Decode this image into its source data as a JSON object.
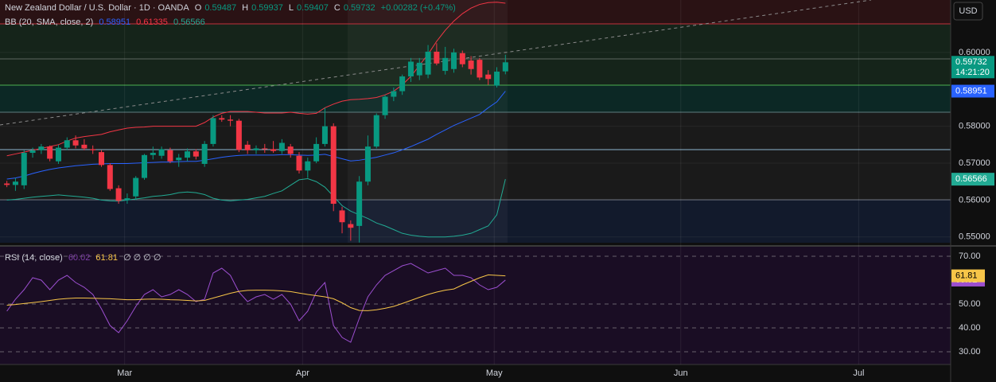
{
  "chart_data": [
    {
      "type": "candlestick",
      "title": "New Zealand Dollar / U.S. Dollar · 1D · OANDA",
      "ohlc_legend": [
        {
          "key": "O",
          "value": "0.59487"
        },
        {
          "key": "H",
          "value": "0.59937"
        },
        {
          "key": "L",
          "value": "0.59407"
        },
        {
          "key": "C",
          "value": "0.59732"
        }
      ],
      "change": "+0.00282 (+0.47%)",
      "currency": "USD",
      "up_color": "#089981",
      "down_color": "#f23645",
      "x": [
        0,
        1,
        2,
        3,
        4,
        5,
        6,
        7,
        8,
        9,
        10,
        11,
        12,
        13,
        14,
        15,
        16,
        17,
        18,
        19,
        20,
        21,
        22,
        23,
        24,
        25,
        26,
        27,
        28,
        29,
        30,
        31,
        32,
        33,
        34,
        35,
        36,
        37,
        38,
        39,
        40,
        41,
        42,
        43,
        44,
        45,
        46,
        47,
        48,
        49,
        50,
        51,
        52,
        53,
        54,
        55,
        56,
        57,
        58
      ],
      "open": [
        0.5645,
        0.5641,
        0.564,
        0.5728,
        0.5735,
        0.5745,
        0.5705,
        0.5742,
        0.5762,
        0.575,
        0.5738,
        0.573,
        0.5695,
        0.5632,
        0.56,
        0.561,
        0.566,
        0.5722,
        0.572,
        0.5735,
        0.5708,
        0.5715,
        0.5732,
        0.5698,
        0.5752,
        0.5822,
        0.5818,
        0.5815,
        0.575,
        0.5735,
        0.574,
        0.5738,
        0.5733,
        0.5745,
        0.572,
        0.568,
        0.5705,
        0.5752,
        0.58,
        0.5572,
        0.5535,
        0.553,
        0.565,
        0.5745,
        0.583,
        0.588,
        0.5895,
        0.5935,
        0.5938,
        0.594,
        0.6002,
        0.595,
        0.5955,
        0.5998,
        0.5978,
        0.598,
        0.594,
        0.591,
        0.59487
      ],
      "high": [
        0.5652,
        0.566,
        0.5735,
        0.5742,
        0.5752,
        0.5748,
        0.575,
        0.577,
        0.5775,
        0.5765,
        0.5748,
        0.5735,
        0.57,
        0.564,
        0.5618,
        0.5665,
        0.5725,
        0.5745,
        0.5745,
        0.5742,
        0.5725,
        0.574,
        0.5738,
        0.576,
        0.583,
        0.583,
        0.583,
        0.582,
        0.576,
        0.5748,
        0.5752,
        0.576,
        0.5765,
        0.5752,
        0.573,
        0.5715,
        0.577,
        0.585,
        0.5808,
        0.5582,
        0.5545,
        0.5665,
        0.5775,
        0.5835,
        0.5885,
        0.5905,
        0.594,
        0.5985,
        0.5985,
        0.602,
        0.6025,
        0.6015,
        0.601,
        0.6005,
        0.599,
        0.5985,
        0.5952,
        0.596,
        0.59937
      ],
      "low": [
        0.5635,
        0.5625,
        0.563,
        0.5715,
        0.5725,
        0.5705,
        0.5698,
        0.5735,
        0.574,
        0.5735,
        0.5725,
        0.569,
        0.5625,
        0.559,
        0.559,
        0.56,
        0.5655,
        0.571,
        0.5712,
        0.57,
        0.569,
        0.5705,
        0.571,
        0.569,
        0.5745,
        0.5812,
        0.58,
        0.573,
        0.5725,
        0.5725,
        0.5728,
        0.5728,
        0.5725,
        0.5715,
        0.5672,
        0.566,
        0.57,
        0.5745,
        0.557,
        0.551,
        0.549,
        0.5485,
        0.564,
        0.574,
        0.582,
        0.5868,
        0.5885,
        0.592,
        0.5925,
        0.593,
        0.5965,
        0.594,
        0.5945,
        0.596,
        0.594,
        0.5925,
        0.5912,
        0.5905,
        0.59407
      ],
      "close": [
        0.5641,
        0.565,
        0.5728,
        0.5735,
        0.5745,
        0.5712,
        0.5742,
        0.5762,
        0.5748,
        0.574,
        0.5735,
        0.5695,
        0.563,
        0.5598,
        0.5605,
        0.566,
        0.5722,
        0.5728,
        0.5738,
        0.5705,
        0.5715,
        0.5732,
        0.5718,
        0.5752,
        0.5822,
        0.5818,
        0.5815,
        0.5736,
        0.5735,
        0.574,
        0.5738,
        0.5733,
        0.5755,
        0.5725,
        0.568,
        0.5705,
        0.5752,
        0.58,
        0.559,
        0.554,
        0.5525,
        0.565,
        0.5745,
        0.583,
        0.588,
        0.5895,
        0.5935,
        0.5975,
        0.5972,
        0.6002,
        0.597,
        0.5985,
        0.6,
        0.5968,
        0.5955,
        0.5932,
        0.5928,
        0.5948,
        0.59732
      ],
      "indicator": "BB (20, SMA, close, 2)",
      "series": [
        {
          "color": "#2962ff",
          "value_label": "0.58951",
          "values": [
            0.5657,
            0.566,
            0.5665,
            0.5672,
            0.5678,
            0.5683,
            0.5687,
            0.569,
            0.5693,
            0.5695,
            0.5697,
            0.5698,
            0.5699,
            0.5699,
            0.5699,
            0.57,
            0.5701,
            0.5702,
            0.5703,
            0.5703,
            0.5704,
            0.5705,
            0.5705,
            0.5708,
            0.5712,
            0.5716,
            0.5719,
            0.5721,
            0.5722,
            0.5722,
            0.5722,
            0.5722,
            0.5723,
            0.5723,
            0.5722,
            0.5721,
            0.5722,
            0.5724,
            0.5718,
            0.5712,
            0.5706,
            0.5708,
            0.5712,
            0.5716,
            0.5722,
            0.5728,
            0.5736,
            0.5745,
            0.5755,
            0.5765,
            0.5778,
            0.579,
            0.5802,
            0.5812,
            0.5822,
            0.5832,
            0.585,
            0.5866,
            0.58951
          ]
        },
        {
          "color": "#f23645",
          "value_label": "0.61335",
          "values": [
            0.572,
            0.5725,
            0.573,
            0.5735,
            0.574,
            0.5745,
            0.575,
            0.576,
            0.5768,
            0.5772,
            0.5775,
            0.5778,
            0.5785,
            0.579,
            0.5795,
            0.5797,
            0.5798,
            0.58,
            0.58,
            0.58,
            0.58,
            0.58,
            0.58,
            0.581,
            0.5825,
            0.5835,
            0.584,
            0.584,
            0.584,
            0.5838,
            0.5836,
            0.5836,
            0.5836,
            0.5838,
            0.5835,
            0.5833,
            0.5835,
            0.585,
            0.586,
            0.5868,
            0.5872,
            0.5873,
            0.5875,
            0.5878,
            0.5885,
            0.5895,
            0.5912,
            0.5935,
            0.5965,
            0.5995,
            0.603,
            0.606,
            0.6085,
            0.6105,
            0.612,
            0.613,
            0.6135,
            0.6136,
            0.61335
          ]
        },
        {
          "color": "#22ab94",
          "value_label": "0.56566",
          "values": [
            0.56,
            0.5602,
            0.5605,
            0.5608,
            0.561,
            0.5612,
            0.5614,
            0.5612,
            0.561,
            0.5608,
            0.5605,
            0.56,
            0.5598,
            0.5597,
            0.56,
            0.5603,
            0.5606,
            0.561,
            0.5612,
            0.5615,
            0.562,
            0.5622,
            0.562,
            0.5615,
            0.5605,
            0.56,
            0.5598,
            0.56,
            0.5602,
            0.5606,
            0.561,
            0.5618,
            0.5625,
            0.564,
            0.5655,
            0.5658,
            0.565,
            0.5635,
            0.561,
            0.5585,
            0.557,
            0.556,
            0.555,
            0.5538,
            0.553,
            0.552,
            0.551,
            0.5505,
            0.5502,
            0.55,
            0.55,
            0.55,
            0.5502,
            0.5505,
            0.551,
            0.552,
            0.553,
            0.556,
            0.56566
          ]
        }
      ],
      "xlim": [
        -0.8,
        109.8
      ],
      "ylim": [
        0.5478,
        0.6142
      ],
      "yticks": [
        {
          "value": 0.6,
          "label": "0.60000"
        },
        {
          "value": 0.58,
          "label": "0.58000"
        },
        {
          "value": 0.57,
          "label": "0.57000"
        },
        {
          "value": 0.56,
          "label": "0.56000"
        },
        {
          "value": 0.55,
          "label": "0.55000"
        }
      ],
      "price_labels": [
        {
          "value": 0.59732,
          "label": "0.59732",
          "sub": "14:21:20",
          "color": "#089981"
        },
        {
          "value": 0.58951,
          "label": "0.58951",
          "color": "#2962ff"
        },
        {
          "value": 0.56566,
          "label": "0.56566",
          "color": "#22ab94"
        }
      ]
    },
    {
      "type": "line",
      "indicator": "RSI (14, close)",
      "extra_legend": "∅ ∅ ∅ ∅",
      "x": [
        0,
        1,
        2,
        3,
        4,
        5,
        6,
        7,
        8,
        9,
        10,
        11,
        12,
        13,
        14,
        15,
        16,
        17,
        18,
        19,
        20,
        21,
        22,
        23,
        24,
        25,
        26,
        27,
        28,
        29,
        30,
        31,
        32,
        33,
        34,
        35,
        36,
        37,
        38,
        39,
        40,
        41,
        42,
        43,
        44,
        45,
        46,
        47,
        48,
        49,
        50,
        51,
        52,
        53,
        54,
        55,
        56,
        57,
        58
      ],
      "series": [
        {
          "color": "#9c4fd0",
          "value_label": "60.02",
          "values": [
            47,
            52,
            56,
            61,
            60,
            56,
            60,
            62,
            59,
            57,
            54,
            48,
            41,
            38,
            43,
            49,
            54,
            56,
            53,
            54,
            56,
            54,
            51,
            52,
            63,
            65,
            62,
            55,
            51,
            53,
            54,
            52,
            54,
            50,
            43,
            47,
            55,
            59,
            41,
            36,
            34,
            44,
            53,
            58,
            62,
            64,
            66,
            67,
            65,
            63,
            64,
            65,
            62,
            62,
            61,
            58,
            56,
            57,
            60.02
          ]
        },
        {
          "color": "#f7c548",
          "value_label": "61.81",
          "values": [
            49.5,
            49.8,
            50.2,
            50.6,
            51,
            51.5,
            52,
            52.3,
            52.5,
            52.5,
            52.4,
            52.3,
            52.2,
            52,
            51.8,
            51.8,
            52,
            52.1,
            52,
            51.8,
            51.7,
            51.5,
            51.3,
            51.5,
            52.5,
            53.5,
            54.5,
            55.3,
            55.7,
            55.8,
            55.8,
            55.7,
            55.5,
            55.2,
            54.6,
            54,
            53.5,
            53,
            52.2,
            50.5,
            48.5,
            47.3,
            47.2,
            47.6,
            48.2,
            49,
            50.2,
            51.5,
            52.8,
            54,
            55,
            55.8,
            56.3,
            58,
            59.5,
            61,
            62.2,
            62,
            61.81
          ]
        }
      ],
      "xlim": [
        -0.8,
        109.8
      ],
      "xticks": [
        {
          "value": 13.7,
          "label": "Mar"
        },
        {
          "value": 34.4,
          "label": "Apr"
        },
        {
          "value": 56.7,
          "label": "May"
        },
        {
          "value": 78.4,
          "label": "Jun"
        },
        {
          "value": 99.1,
          "label": "Jul"
        }
      ],
      "ylim": [
        24.67,
        74
      ],
      "yticks": [
        {
          "value": 70,
          "label": "70.00"
        },
        {
          "value": 50,
          "label": "50.00"
        },
        {
          "value": 40,
          "label": "40.00"
        },
        {
          "value": 30,
          "label": "30.00"
        }
      ]
    }
  ]
}
